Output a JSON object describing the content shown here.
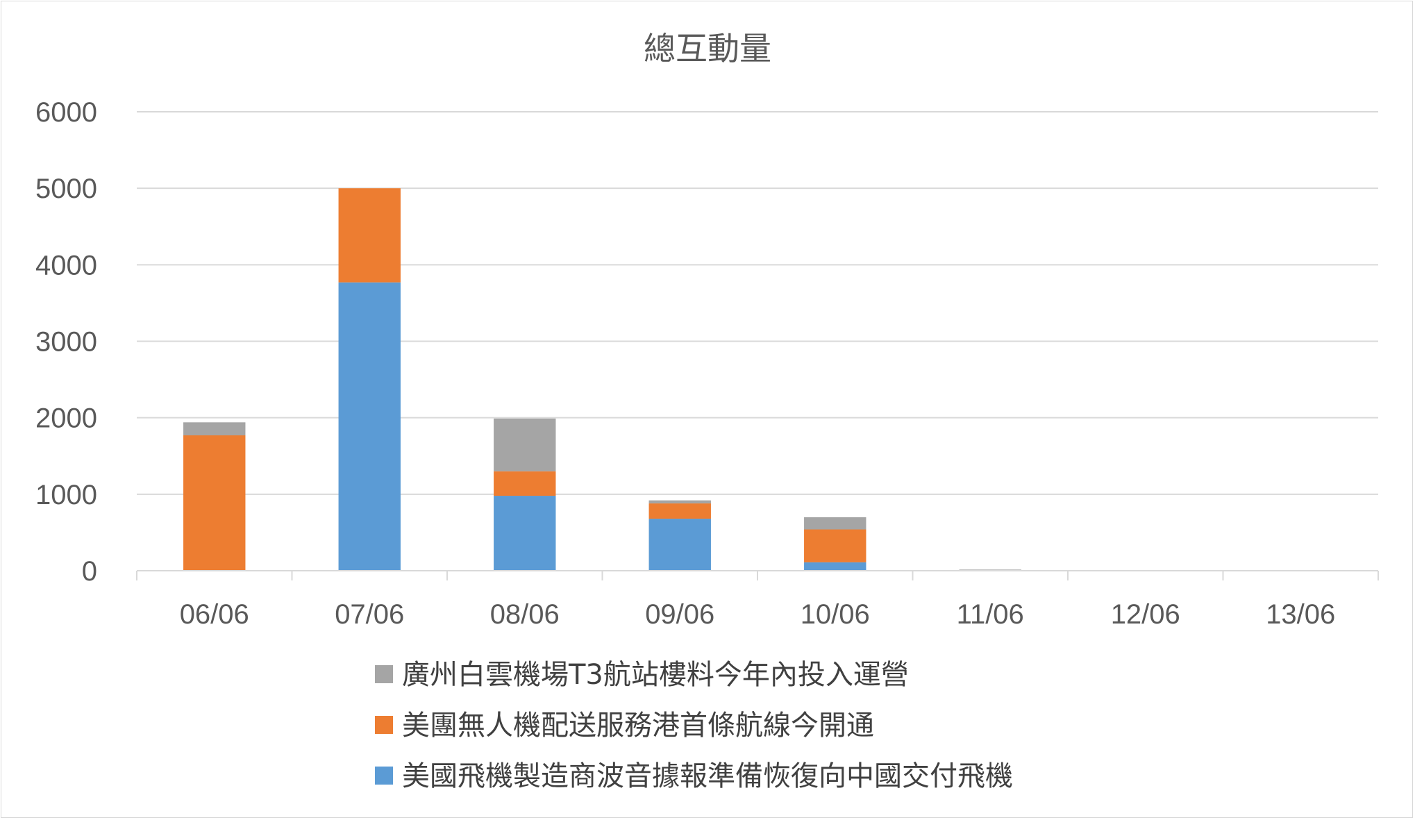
{
  "chart_data": {
    "type": "bar",
    "stacked": true,
    "title": "總互動量",
    "xlabel": "",
    "ylabel": "",
    "ylim": [
      0,
      6000
    ],
    "yticks": [
      0,
      1000,
      2000,
      3000,
      4000,
      5000,
      6000
    ],
    "grid": true,
    "legend_position": "bottom",
    "categories": [
      "06/06",
      "07/06",
      "08/06",
      "09/06",
      "10/06",
      "11/06",
      "12/06",
      "13/06"
    ],
    "series": [
      {
        "name": "美國飛機製造商波音據報準備恢復向中國交付飛機",
        "color": "#5b9bd5",
        "values": [
          0,
          3770,
          980,
          680,
          110,
          0,
          0,
          0
        ]
      },
      {
        "name": "美團無人機配送服務港首條航線今開通",
        "color": "#ed7d31",
        "values": [
          1770,
          1230,
          320,
          200,
          430,
          0,
          0,
          0
        ]
      },
      {
        "name": "廣州白雲機場T3航站樓料今年內投入運營",
        "color": "#a5a5a5",
        "values": [
          170,
          0,
          690,
          40,
          160,
          15,
          0,
          0
        ]
      }
    ]
  }
}
